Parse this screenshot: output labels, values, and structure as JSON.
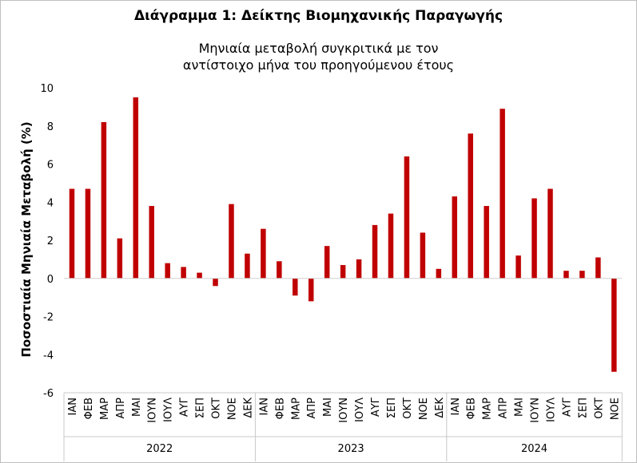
{
  "chart_data": {
    "type": "bar",
    "title": "Διάγραμμα 1: Δείκτης Βιομηχανικής Παραγωγής",
    "subtitle": "Μηνιαία μεταβολή συγκριτικά με τον αντίστοιχο μήνα του προηγούμενου έτους",
    "ylabel": "Ποσοστιαία Μηνιαία Μεταβολή (%)",
    "xlabel": "",
    "ylim": [
      -6,
      10
    ],
    "yticks": [
      -6,
      -4,
      -2,
      0,
      2,
      4,
      6,
      8,
      10
    ],
    "grid": false,
    "bar_color": "#c00000",
    "years": [
      {
        "label": "2022",
        "months": [
          "ΙΑΝ",
          "ΦΕΒ",
          "ΜΑΡ",
          "ΑΠΡ",
          "ΜΑΙ",
          "ΙΟΥΝ",
          "ΙΟΥΛ",
          "ΑΥΓ",
          "ΣΕΠ",
          "ΟΚΤ",
          "ΝΟΕ",
          "ΔΕΚ"
        ]
      },
      {
        "label": "2023",
        "months": [
          "ΙΑΝ",
          "ΦΕΒ",
          "ΜΑΡ",
          "ΑΠΡ",
          "ΜΑΙ",
          "ΙΟΥΝ",
          "ΙΟΥΛ",
          "ΑΥΓ",
          "ΣΕΠ",
          "ΟΚΤ",
          "ΝΟΕ",
          "ΔΕΚ"
        ]
      },
      {
        "label": "2024",
        "months": [
          "ΙΑΝ",
          "ΦΕΒ",
          "ΜΑΡ",
          "ΑΠΡ",
          "ΜΑΙ",
          "ΙΟΥΝ",
          "ΙΟΥΛ",
          "ΑΥΓ",
          "ΣΕΠ",
          "ΟΚΤ",
          "ΝΟΕ"
        ]
      }
    ],
    "values": [
      4.7,
      4.7,
      8.2,
      2.1,
      9.5,
      3.8,
      0.8,
      0.6,
      0.3,
      -0.4,
      3.9,
      1.3,
      2.6,
      0.9,
      -0.9,
      -1.2,
      1.7,
      0.7,
      1.0,
      2.8,
      3.4,
      6.4,
      2.4,
      0.5,
      4.3,
      7.6,
      3.8,
      8.9,
      1.2,
      4.2,
      4.7,
      0.4,
      0.4,
      1.1,
      -4.9
    ]
  }
}
